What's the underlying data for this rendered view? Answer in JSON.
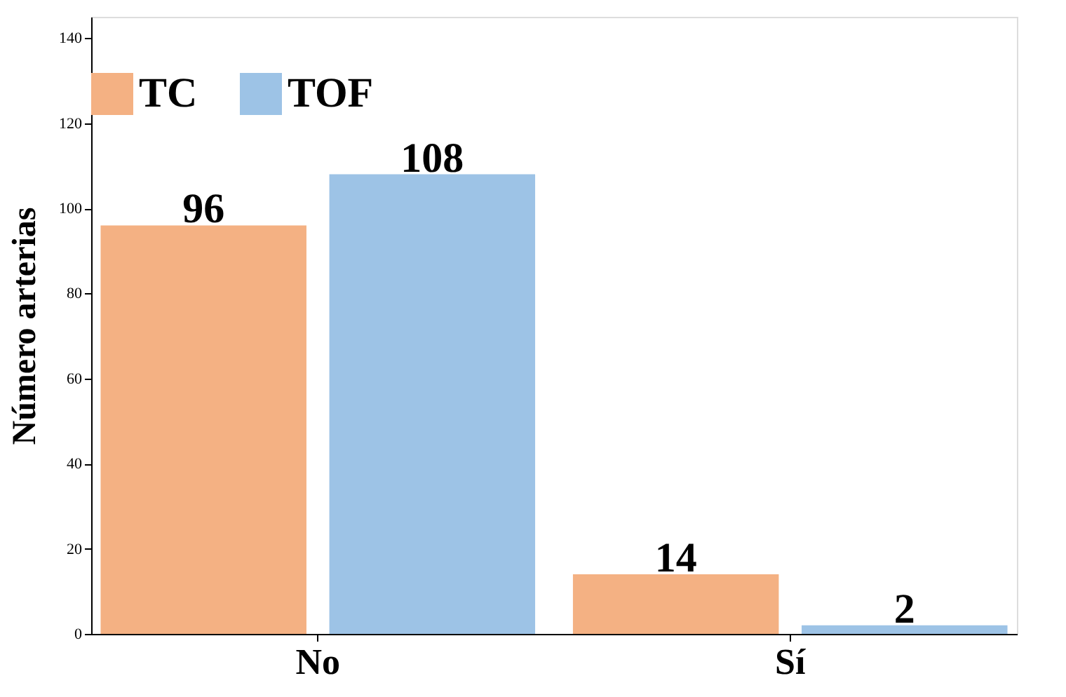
{
  "chart_data": {
    "type": "bar",
    "ylabel": "Número arterias",
    "categories": [
      "No",
      "Sí"
    ],
    "series": [
      {
        "name": "TC",
        "color": "#f4b183",
        "values": [
          96,
          14
        ]
      },
      {
        "name": "TOF",
        "color": "#9dc3e6",
        "values": [
          108,
          2
        ]
      }
    ],
    "ylim": [
      0,
      145
    ],
    "yticks": [
      0,
      20,
      40,
      60,
      80,
      100,
      120,
      140
    ],
    "grid": false,
    "legend": "top",
    "data_labels": true
  }
}
